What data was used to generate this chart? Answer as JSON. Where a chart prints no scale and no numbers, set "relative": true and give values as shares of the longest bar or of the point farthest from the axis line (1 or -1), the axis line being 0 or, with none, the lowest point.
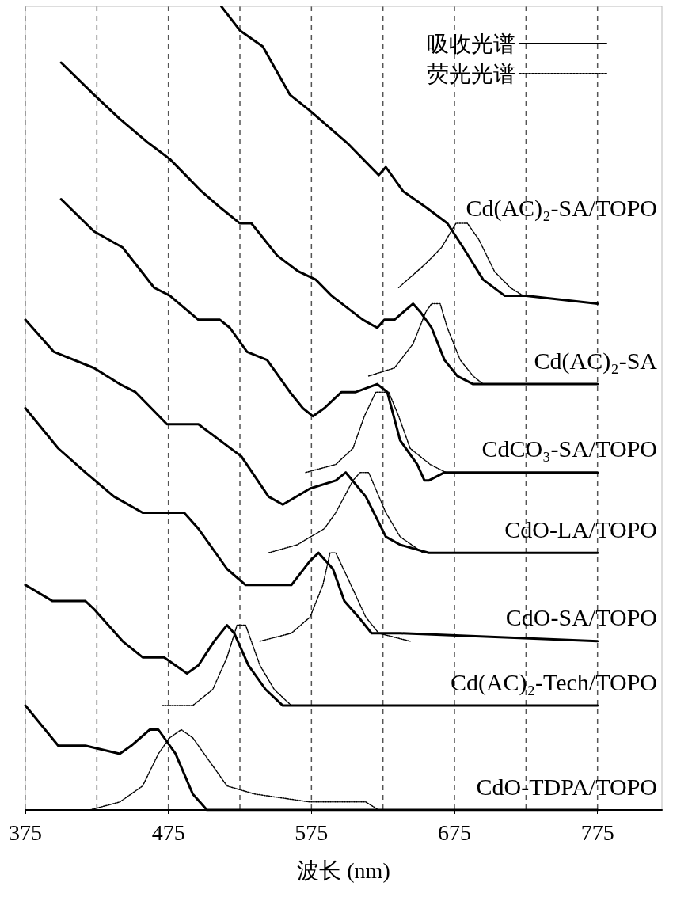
{
  "chart_data": {
    "type": "line",
    "relative": true,
    "xlabel": "波长 (nm)",
    "xlim": [
      375,
      820
    ],
    "xticks": [
      375,
      {
        "value": 425,
        "label": null
      },
      475,
      {
        "value": 525,
        "label": null
      },
      575,
      {
        "value": 625,
        "label": null
      },
      675,
      {
        "value": 725,
        "label": null
      },
      775
    ],
    "grid": "x",
    "legend": "top right",
    "series": [
      {
        "name": "吸收光谱",
        "color": "#000000",
        "line_style": "solid",
        "x": [
          512,
          525,
          541,
          560,
          574,
          600,
          622,
          627,
          639,
          655,
          670,
          681,
          695,
          710,
          725,
          775
        ],
        "values": [
          1.0,
          0.97,
          0.95,
          0.89,
          0.87,
          0.83,
          0.79,
          0.8,
          0.77,
          0.75,
          0.73,
          0.7,
          0.66,
          0.64,
          0.64,
          0.63
        ]
      },
      {
        "name": "荧光光谱",
        "color": "#000000",
        "line_style": "dotted",
        "x": [
          636,
          655,
          666,
          676,
          684,
          692,
          703,
          714,
          723
        ],
        "values": [
          0.65,
          0.68,
          0.7,
          0.73,
          0.73,
          0.71,
          0.67,
          0.65,
          0.64
        ]
      },
      {
        "color": "#000000",
        "line_style": "solid",
        "x": [
          400,
          423,
          441,
          461,
          476,
          487,
          498,
          511,
          525,
          533,
          551,
          566,
          578,
          589,
          611,
          621,
          626,
          633,
          646,
          651,
          659,
          668,
          677,
          688,
          706,
          775
        ],
        "values": [
          0.93,
          0.89,
          0.86,
          0.83,
          0.81,
          0.79,
          0.77,
          0.75,
          0.73,
          0.73,
          0.69,
          0.67,
          0.66,
          0.64,
          0.61,
          0.6,
          0.61,
          0.61,
          0.63,
          0.62,
          0.6,
          0.56,
          0.54,
          0.53,
          0.53,
          0.53
        ]
      },
      {
        "color": "#000000",
        "line_style": "dotted",
        "x": [
          615,
          633,
          646,
          655,
          659,
          665,
          670,
          679,
          688,
          695
        ],
        "values": [
          0.54,
          0.55,
          0.58,
          0.62,
          0.63,
          0.63,
          0.6,
          0.56,
          0.54,
          0.53
        ]
      },
      {
        "color": "#000000",
        "line_style": "solid",
        "x": [
          400,
          423,
          443,
          465,
          476,
          496,
          511,
          518,
          530,
          544,
          560,
          569,
          576,
          584,
          596,
          606,
          621,
          628,
          637,
          649,
          654,
          657,
          668,
          775
        ],
        "values": [
          0.76,
          0.72,
          0.7,
          0.65,
          0.64,
          0.61,
          0.61,
          0.6,
          0.57,
          0.56,
          0.52,
          0.5,
          0.49,
          0.5,
          0.52,
          0.52,
          0.53,
          0.52,
          0.46,
          0.43,
          0.41,
          0.41,
          0.42,
          0.42
        ]
      },
      {
        "color": "#000000",
        "line_style": "dotted",
        "x": [
          571,
          592,
          604,
          612,
          620,
          623,
          629,
          636,
          644,
          658,
          669
        ],
        "values": [
          0.42,
          0.43,
          0.45,
          0.49,
          0.52,
          0.52,
          0.52,
          0.49,
          0.45,
          0.43,
          0.42
        ]
      },
      {
        "color": "#000000",
        "line_style": "solid",
        "x": [
          375,
          395,
          423,
          441,
          452,
          474,
          486,
          496,
          526,
          545,
          555,
          574,
          592,
          599,
          613,
          627,
          637,
          657,
          775
        ],
        "values": [
          0.61,
          0.57,
          0.55,
          0.53,
          0.52,
          0.48,
          0.48,
          0.48,
          0.44,
          0.39,
          0.38,
          0.4,
          0.41,
          0.42,
          0.39,
          0.34,
          0.33,
          0.32,
          0.32
        ]
      },
      {
        "color": "#000000",
        "line_style": "dotted",
        "x": [
          545,
          565,
          584,
          592,
          604,
          609,
          615,
          627,
          637,
          653,
          667
        ],
        "values": [
          0.32,
          0.33,
          0.35,
          0.37,
          0.41,
          0.42,
          0.42,
          0.37,
          0.34,
          0.32,
          0.32
        ]
      },
      {
        "color": "#000000",
        "line_style": "solid",
        "x": [
          375,
          398,
          417,
          437,
          457,
          476,
          486,
          496,
          516,
          529,
          545,
          561,
          574,
          580,
          590,
          598,
          608,
          617,
          637,
          775
        ],
        "values": [
          0.5,
          0.45,
          0.42,
          0.39,
          0.37,
          0.37,
          0.37,
          0.35,
          0.3,
          0.28,
          0.28,
          0.28,
          0.31,
          0.32,
          0.3,
          0.26,
          0.24,
          0.22,
          0.22,
          0.21
        ]
      },
      {
        "color": "#000000",
        "line_style": "dotted",
        "x": [
          539,
          561,
          574,
          583,
          588,
          592,
          600,
          613,
          622,
          644
        ],
        "values": [
          0.21,
          0.22,
          0.24,
          0.28,
          0.32,
          0.32,
          0.29,
          0.24,
          0.22,
          0.21
        ]
      },
      {
        "color": "#000000",
        "line_style": "solid",
        "x": [
          375,
          394,
          417,
          423,
          443,
          457,
          472,
          488,
          496,
          507,
          516,
          521,
          531,
          543,
          555,
          592,
          775
        ],
        "values": [
          0.28,
          0.26,
          0.26,
          0.25,
          0.21,
          0.19,
          0.19,
          0.17,
          0.18,
          0.21,
          0.23,
          0.22,
          0.18,
          0.15,
          0.13,
          0.13,
          0.13
        ]
      },
      {
        "color": "#000000",
        "line_style": "dotted",
        "x": [
          471,
          492,
          506,
          516,
          523,
          529,
          539,
          549,
          561,
          574
        ],
        "values": [
          0.13,
          0.13,
          0.15,
          0.19,
          0.23,
          0.23,
          0.18,
          0.15,
          0.13,
          0.13
        ]
      },
      {
        "color": "#000000",
        "line_style": "solid",
        "x": [
          375,
          398,
          417,
          441,
          449,
          462,
          468,
          480,
          492,
          502,
          516,
          775
        ],
        "values": [
          0.13,
          0.08,
          0.08,
          0.07,
          0.08,
          0.1,
          0.1,
          0.07,
          0.02,
          0.0,
          0,
          0
        ]
      },
      {
        "color": "#000000",
        "line_style": "dotted",
        "x": [
          420,
          441,
          457,
          468,
          476,
          484,
          492,
          504,
          516,
          535,
          574,
          592,
          613,
          622,
          637
        ],
        "values": [
          0,
          0.01,
          0.03,
          0.07,
          0.09,
          0.1,
          0.09,
          0.06,
          0.03,
          0.02,
          0.01,
          0.01,
          0.01,
          0.0,
          0
        ]
      }
    ],
    "annotations": [
      "Cd(AC)₂-SA/TOPO",
      "Cd(AC)₂-SA",
      "CdCO₃-SA/TOPO",
      "CdO-LA/TOPO",
      "CdO-SA/TOPO",
      "Cd(AC)₂-Tech/TOPO",
      "CdO-TDPA/TOPO"
    ]
  }
}
